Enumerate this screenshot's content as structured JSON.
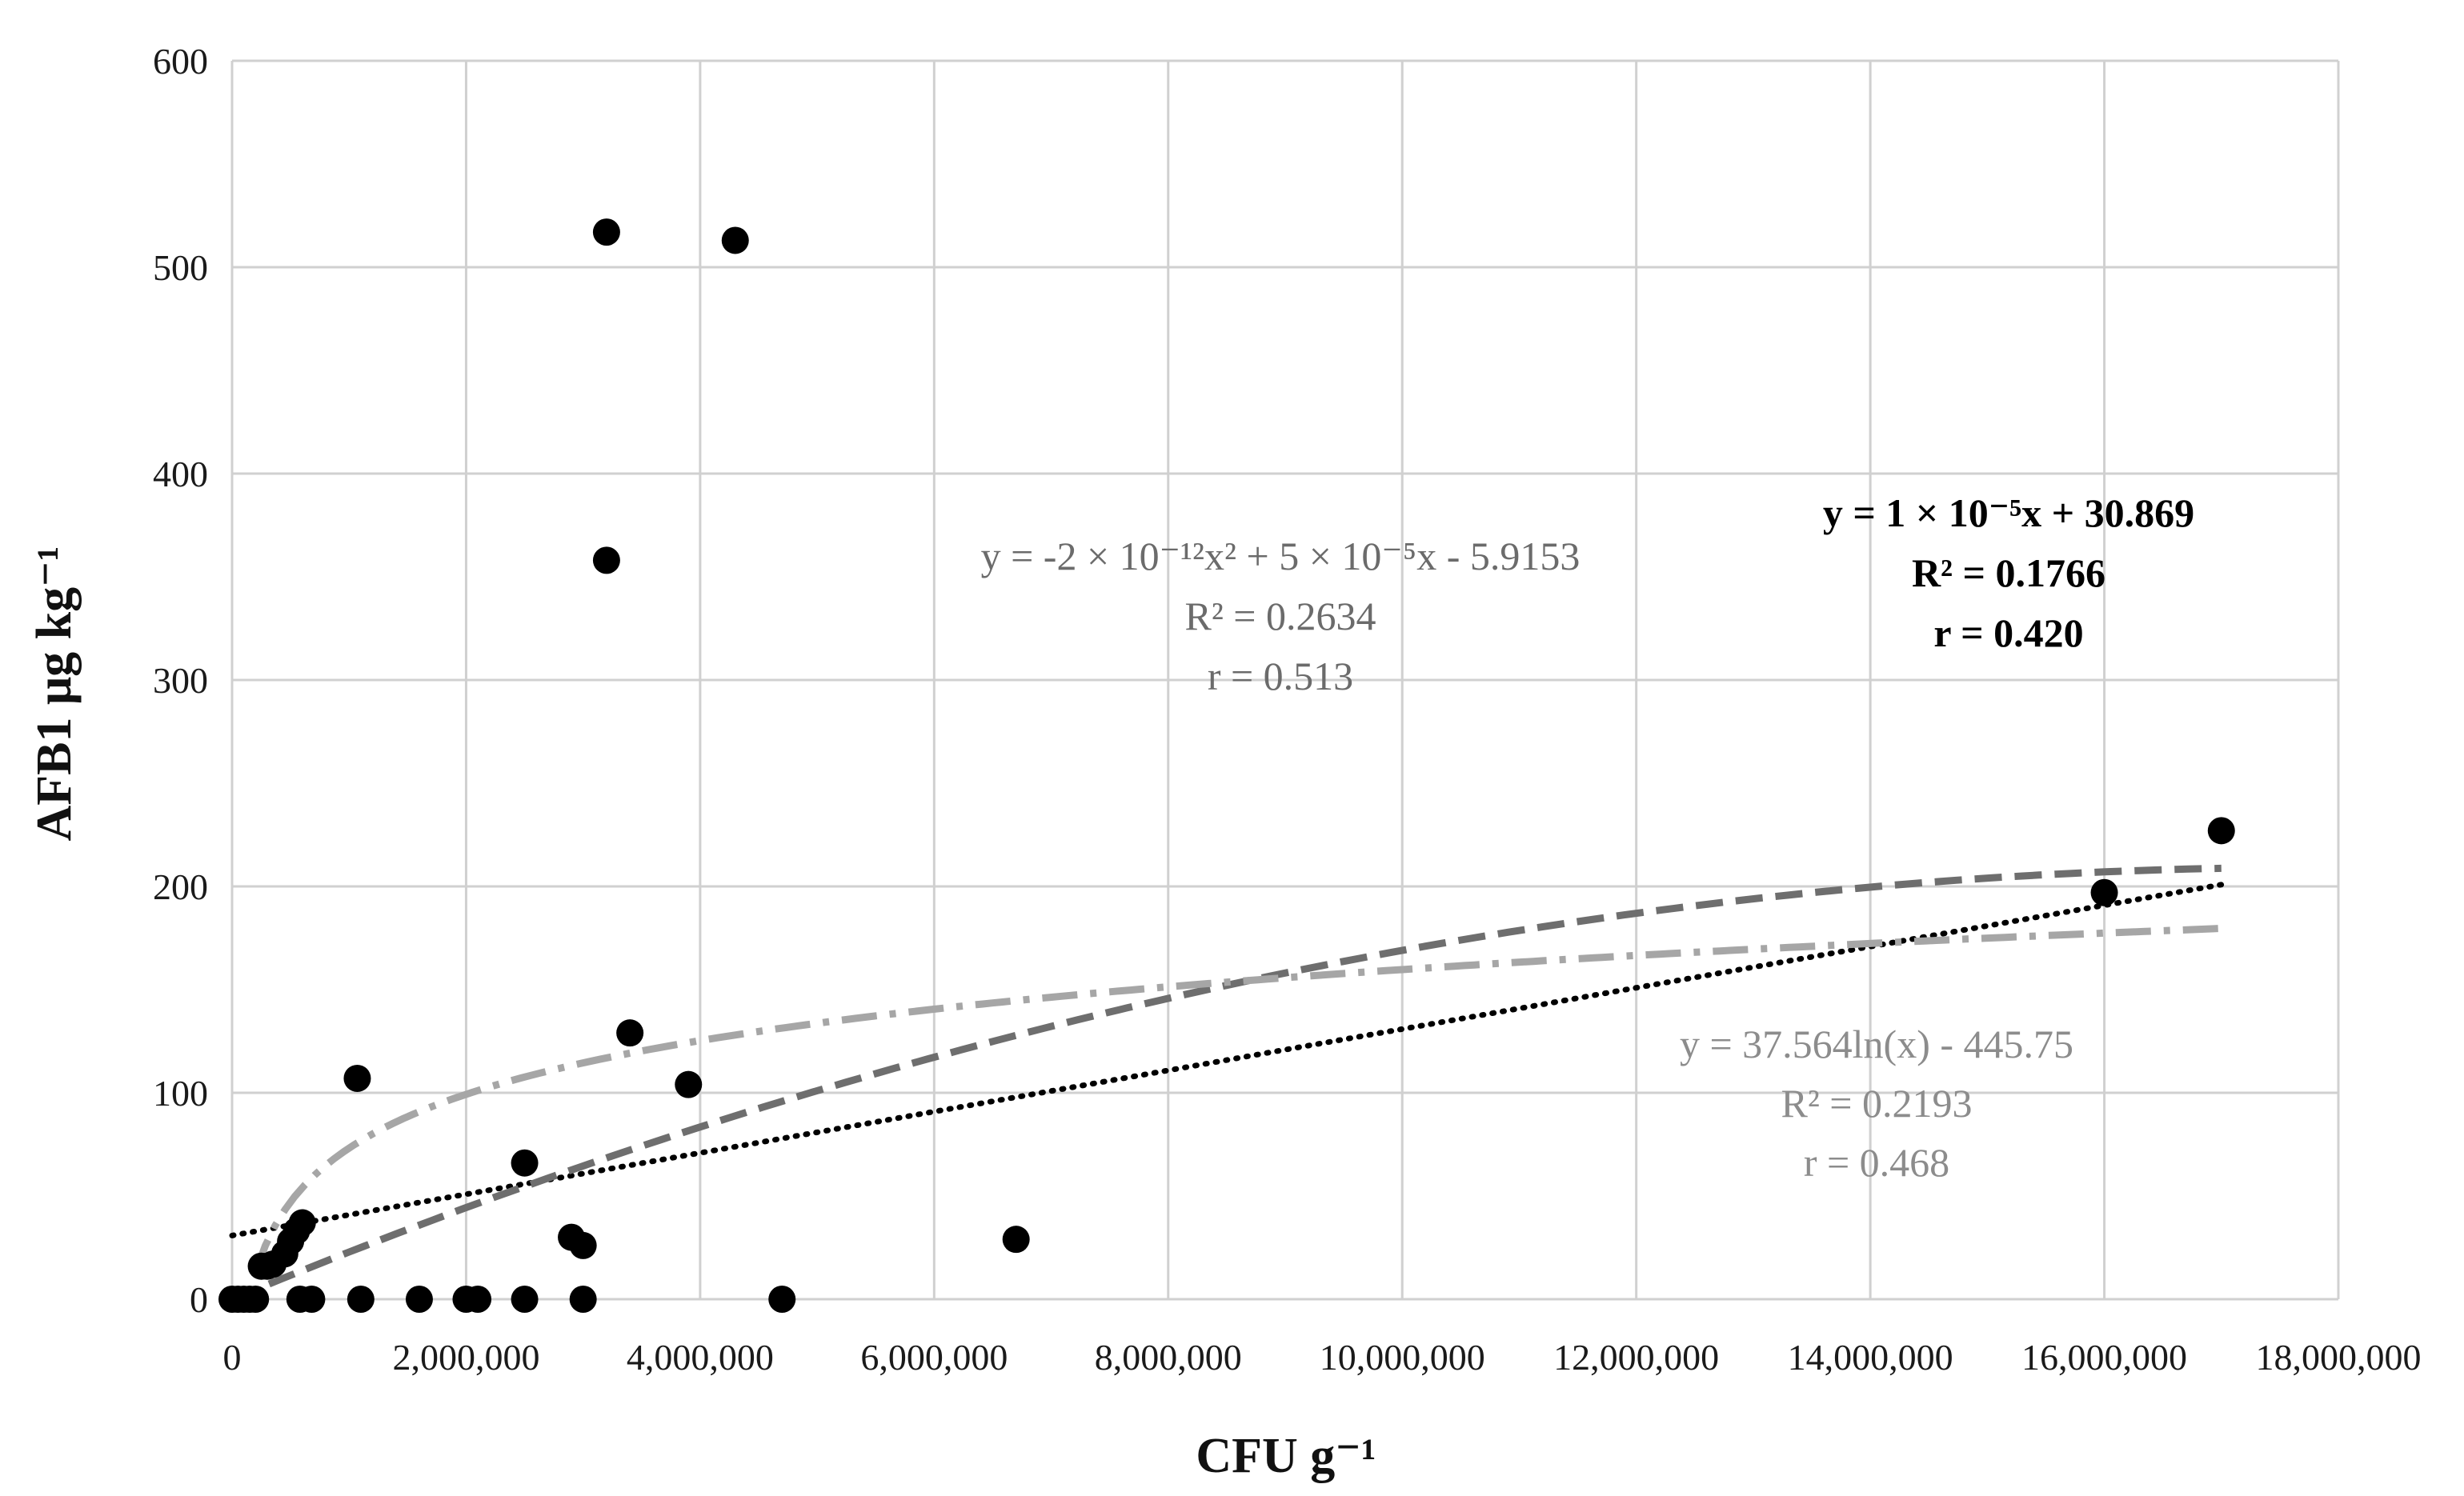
{
  "chart_data": {
    "type": "scatter",
    "xlabel": "CFU g⁻¹",
    "ylabel": "AFB1 μg kg⁻¹",
    "xlim": [
      0,
      18000000
    ],
    "ylim": [
      0,
      600
    ],
    "x_ticks": [
      0,
      2000000,
      4000000,
      6000000,
      8000000,
      10000000,
      12000000,
      14000000,
      16000000,
      18000000
    ],
    "x_tick_labels": [
      "0",
      "2,000,000",
      "4,000,000",
      "6,000,000",
      "8,000,000",
      "10,000,000",
      "12,000,000",
      "14,000,000",
      "16,000,000",
      "18,000,000"
    ],
    "y_ticks": [
      0,
      100,
      200,
      300,
      400,
      500,
      600
    ],
    "y_tick_labels": [
      "0",
      "100",
      "200",
      "300",
      "400",
      "500",
      "600"
    ],
    "grid": true,
    "colors": {
      "points": "#000000",
      "linear": "#000000",
      "poly": "#6e6e6e",
      "log": "#a6a6a6",
      "grid": "#d0d0d0",
      "poly_text": "#6b6b6b",
      "log_text": "#8c8c8c",
      "linear_text": "#000000"
    },
    "points": [
      {
        "x": 0,
        "y": 0
      },
      {
        "x": 50000,
        "y": 0
      },
      {
        "x": 100000,
        "y": 0
      },
      {
        "x": 150000,
        "y": 0
      },
      {
        "x": 200000,
        "y": 0
      },
      {
        "x": 250000,
        "y": 16
      },
      {
        "x": 300000,
        "y": 16
      },
      {
        "x": 350000,
        "y": 17
      },
      {
        "x": 450000,
        "y": 22
      },
      {
        "x": 500000,
        "y": 28
      },
      {
        "x": 550000,
        "y": 33
      },
      {
        "x": 600000,
        "y": 37
      },
      {
        "x": 580000,
        "y": 0
      },
      {
        "x": 680000,
        "y": 0
      },
      {
        "x": 1070000,
        "y": 107
      },
      {
        "x": 1100000,
        "y": 0
      },
      {
        "x": 1600000,
        "y": 0
      },
      {
        "x": 2000000,
        "y": 0
      },
      {
        "x": 2100000,
        "y": 0
      },
      {
        "x": 2500000,
        "y": 0
      },
      {
        "x": 2500000,
        "y": 66
      },
      {
        "x": 2900000,
        "y": 30
      },
      {
        "x": 3000000,
        "y": 26
      },
      {
        "x": 3000000,
        "y": 0
      },
      {
        "x": 3200000,
        "y": 517
      },
      {
        "x": 3200000,
        "y": 358
      },
      {
        "x": 3400000,
        "y": 129
      },
      {
        "x": 3900000,
        "y": 104
      },
      {
        "x": 4300000,
        "y": 513
      },
      {
        "x": 4700000,
        "y": 0
      },
      {
        "x": 6700000,
        "y": 29
      },
      {
        "x": 16000000,
        "y": 197
      },
      {
        "x": 17000000,
        "y": 227
      }
    ],
    "series": [
      {
        "name": "linear",
        "style": "dotted",
        "x_range": [
          0,
          17000000
        ],
        "equation": "y = 1 × 10⁻⁵x + 30.869",
        "r_squared": "R² = 0.1766",
        "r": "r = 0.420"
      },
      {
        "name": "poly",
        "style": "dashed",
        "x_range": [
          0,
          17000000
        ],
        "equation": "y = -2 × 10⁻¹²x² + 5 × 10⁻⁵x - 5.9153",
        "r_squared": "R² = 0.2634",
        "r": "r = 0.513"
      },
      {
        "name": "log",
        "style": "dash-dot",
        "x_range": [
          200000,
          17000000
        ],
        "equation": "y = 37.564ln(x) - 445.75",
        "r_squared": "R² = 0.2193",
        "r": "r = 0.468"
      }
    ]
  }
}
